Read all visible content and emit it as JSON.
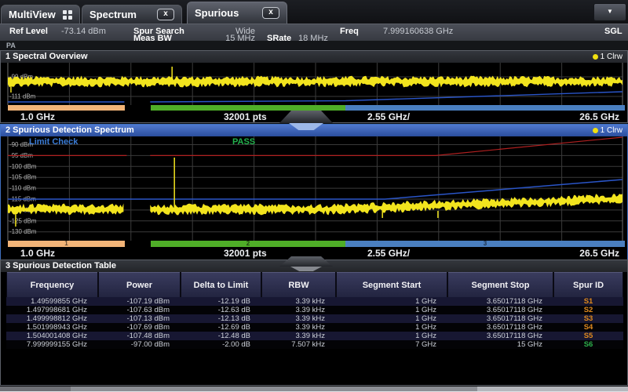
{
  "tab_bar": {
    "tabs": [
      {
        "label": "MultiView"
      },
      {
        "label": "Spectrum"
      },
      {
        "label": "Spurious"
      }
    ],
    "close_glyph": "x",
    "overflow_glyph": "▼"
  },
  "settings": {
    "ref_level_label": "Ref Level",
    "ref_level_value": "-73.14 dBm",
    "meas_bw_label_line1": "Spur Search",
    "meas_bw_label_line2": "Meas BW",
    "meas_bw_value_line1": "Wide",
    "meas_bw_value_line2": "15 MHz",
    "srate_label": "SRate",
    "srate_value": "18 MHz",
    "freq_label": "Freq",
    "freq_value": "7.999160638 GHz",
    "sweep_badge": "SGL",
    "input_label": "PA"
  },
  "panel1": {
    "title": "1 Spectral Overview",
    "trace_label": "1 Clrw",
    "y_labels": [
      "-99 dBm",
      "-111 dBm"
    ],
    "x_start": "1.0 GHz",
    "points": "32001 pts",
    "x_scale": "2.55 GHz/",
    "x_stop": "26.5 GHz"
  },
  "panel2": {
    "title": "2 Spurious Detection Spectrum",
    "trace_label": "1 Clrw",
    "limit_check_label": "Limit Check",
    "limit_check_result": "PASS",
    "y_labels": [
      "-90 dBm",
      "-95 dBm",
      "-100 dBm",
      "-105 dBm",
      "-110 dBm",
      "-115 dBm",
      "-120 dBm",
      "-125 dBm",
      "-130 dBm"
    ],
    "segments": [
      {
        "label": "1"
      },
      {
        "label": "2"
      },
      {
        "label": "3"
      }
    ],
    "x_start": "1.0 GHz",
    "points": "32001 pts",
    "x_scale": "2.55 GHz/",
    "x_stop": "26.5 GHz"
  },
  "table": {
    "title": "3 Spurious Detection Table",
    "columns": [
      "Frequency",
      "Power",
      "Delta to Limit",
      "RBW",
      "Segment Start",
      "Segment Stop",
      "Spur ID"
    ],
    "rows": [
      [
        "1.49599855 GHz",
        "-107.19 dBm",
        "-12.19 dB",
        "3.39 kHz",
        "1 GHz",
        "3.65017118 GHz",
        "S1"
      ],
      [
        "1.497998681 GHz",
        "-107.63 dBm",
        "-12.63 dB",
        "3.39 kHz",
        "1 GHz",
        "3.65017118 GHz",
        "S2"
      ],
      [
        "1.499998812 GHz",
        "-107.13 dBm",
        "-12.13 dB",
        "3.39 kHz",
        "1 GHz",
        "3.65017118 GHz",
        "S3"
      ],
      [
        "1.501998943 GHz",
        "-107.69 dBm",
        "-12.69 dB",
        "3.39 kHz",
        "1 GHz",
        "3.65017118 GHz",
        "S4"
      ],
      [
        "1.504001408 GHz",
        "-107.48 dBm",
        "-12.48 dB",
        "3.39 kHz",
        "1 GHz",
        "3.65017118 GHz",
        "S5"
      ],
      [
        "7.999999155 GHz",
        "-97.00 dBm",
        "-2.00 dB",
        "7.507 kHz",
        "7 GHz",
        "15 GHz",
        "S6"
      ]
    ],
    "spur_id_colors": [
      "#e08a1e",
      "#e08a1e",
      "#e08a1e",
      "#e08a1e",
      "#e08a1e",
      "#2db04b"
    ]
  },
  "colors": {
    "trace_yellow": "#f2e41e",
    "limit_red": "#b02020",
    "limit_blue": "#2a55c8",
    "segment_orange": "#f2b478",
    "segment_green": "#4fae28",
    "segment_blue": "#4a7fc0",
    "limit_check_blue": "#3a7bd5",
    "pass_green": "#22b14c",
    "clrw_dot": "#f0e010",
    "panel_select_blue": "#3f6fc0"
  },
  "chart_data": [
    {
      "type": "line",
      "title": "1 Spectral Overview",
      "x_start": "1.0 GHz",
      "x_stop": "26.5 GHz",
      "x_scale_per_div": "2.55 GHz/",
      "sweep_points": 32001,
      "y_gridline_labels": [
        "-99 dBm",
        "-111 dBm"
      ],
      "traces": [
        {
          "name": "1 Clrw",
          "color": "#f2e41e",
          "description": "yellow noise-floor band roughly -99 to -111 dBm across 1 to 26.5 GHz, spur spike near 8 GHz reaching top of window"
        }
      ],
      "limit_lines": [
        {
          "color": "#2a55c8",
          "description": "blue threshold line, flat near bottom of window then rising toward 26.5 GHz, gap near 6 GHz"
        }
      ],
      "segments": [
        {
          "id": "1",
          "color": "#f2b478"
        },
        {
          "id": "2",
          "color": "#4fae28"
        },
        {
          "id": "3",
          "color": "#4a7fc0"
        }
      ]
    },
    {
      "type": "line",
      "title": "2 Spurious Detection Spectrum",
      "limit_check": "PASS",
      "x_start": "1.0 GHz",
      "x_stop": "26.5 GHz",
      "x_scale_per_div": "2.55 GHz/",
      "sweep_points": 32001,
      "ylim_dbm": [
        -130,
        -88
      ],
      "y_gridline_labels": [
        "-90 dBm",
        "-95 dBm",
        "-100 dBm",
        "-105 dBm",
        "-110 dBm",
        "-115 dBm",
        "-120 dBm",
        "-125 dBm",
        "-130 dBm"
      ],
      "traces": [
        {
          "name": "1 Clrw",
          "color": "#f2e41e",
          "description": "yellow noise floor near -119 dBm rising to about -113 dBm at 26.5 GHz; gap near 6 GHz; spur spike to about -97 dBm near 8 GHz; downward spike near 1.5 GHz; small notches near 16.5 and 18.8 GHz"
        }
      ],
      "limit_lines": [
        {
          "color": "#b02020",
          "level": "-95 dBm",
          "description": "red limit line flat at -95 dBm, rising after about 18.7 GHz"
        },
        {
          "color": "#2a55c8",
          "level": "-115 dBm",
          "description": "blue threshold flat at -115 dBm, rising after about 16.6 GHz"
        }
      ],
      "segments": [
        {
          "id": "1",
          "color": "#f2b478",
          "start": "1 GHz",
          "stop": "3.65017118 GHz"
        },
        {
          "id": "2",
          "color": "#4fae28"
        },
        {
          "id": "3",
          "color": "#4a7fc0",
          "stop": "15 GHz"
        }
      ]
    }
  ]
}
